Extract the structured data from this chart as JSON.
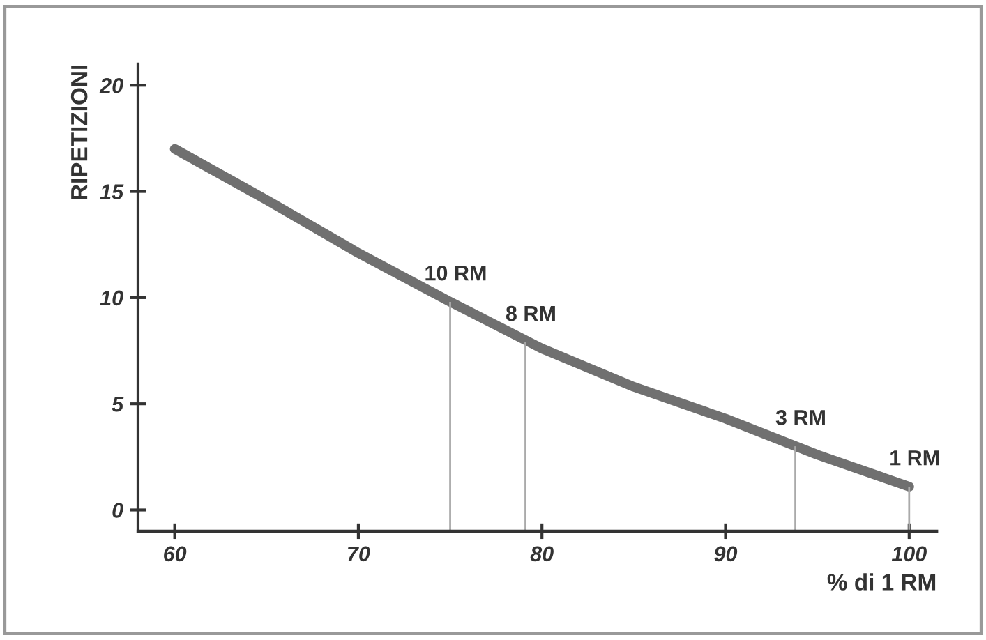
{
  "chart_data": {
    "type": "line",
    "xlabel": "% di 1 RM",
    "ylabel": "RIPETIZIONI",
    "x": [
      60,
      65,
      70,
      75,
      80,
      85,
      90,
      95,
      100
    ],
    "series": [
      {
        "color": "#707070",
        "values": [
          17,
          14.6,
          12.1,
          9.8,
          7.6,
          5.8,
          4.3,
          2.6,
          1.1
        ]
      }
    ],
    "xlim": [
      58,
      101.5
    ],
    "ylim": [
      -1,
      21
    ],
    "xticks": [
      60,
      70,
      80,
      90,
      100
    ],
    "yticks": [
      0,
      5,
      10,
      15,
      20
    ],
    "grid": false,
    "legend": false,
    "marker": "none",
    "line_style": "solid",
    "annotations": [
      {
        "text": "10 RM",
        "x": 75,
        "y": 9.8
      },
      {
        "text": "8 RM",
        "x": 79.1,
        "y": 7.9
      },
      {
        "text": "3 RM",
        "x": 93.8,
        "y": 3.0
      },
      {
        "text": "1 RM",
        "x": 100,
        "y": 1.1
      }
    ]
  }
}
